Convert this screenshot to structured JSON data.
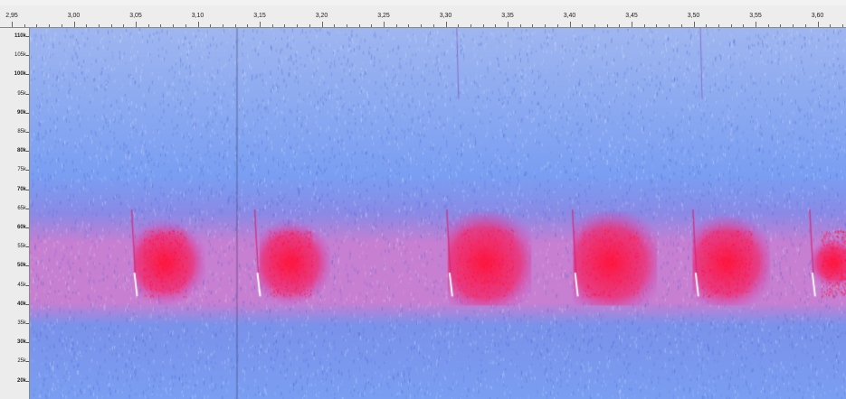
{
  "time_ruler": {
    "labels": [
      "2,95",
      "3,00",
      "3,05",
      "3,10",
      "3,15",
      "3,20",
      "3,25",
      "3,30",
      "3,35",
      "3,40",
      "3,45",
      "3,50",
      "3,55",
      "3,60"
    ]
  },
  "freq_axis": {
    "labels": [
      "110k",
      "105k",
      "100k",
      "95k",
      "90k",
      "85k",
      "80k",
      "75k",
      "70k",
      "65k",
      "60k",
      "55k",
      "50k",
      "45k",
      "40k",
      "35k",
      "30k",
      "25k",
      "20k"
    ],
    "bold_labels": [
      "110k",
      "100k",
      "90k",
      "80k",
      "70k",
      "60k",
      "50k",
      "40k",
      "30k",
      "20k"
    ]
  },
  "spectrogram": {
    "colors": {
      "background": "#7a9ef2",
      "high_freq": "#9fb6f0",
      "mid_band": "#c77fd2",
      "call_hot": "#ff1e4c",
      "call_peak": "#ffffff"
    },
    "time_range": [
      2.95,
      3.6
    ],
    "freq_range_khz": [
      18,
      112
    ],
    "calls": [
      {
        "sweep_time": 3.034,
        "tail_start": 3.04,
        "tail_end": 3.075
      },
      {
        "sweep_time": 3.132,
        "tail_start": 3.14,
        "tail_end": 3.175
      },
      {
        "sweep_time": 3.285,
        "tail_start": 3.29,
        "tail_end": 3.335
      },
      {
        "sweep_time": 3.385,
        "tail_start": 3.39,
        "tail_end": 3.435
      },
      {
        "sweep_time": 3.481,
        "tail_start": 3.485,
        "tail_end": 3.525
      },
      {
        "sweep_time": 3.574,
        "tail_start": 3.58,
        "tail_end": 3.6
      }
    ]
  }
}
